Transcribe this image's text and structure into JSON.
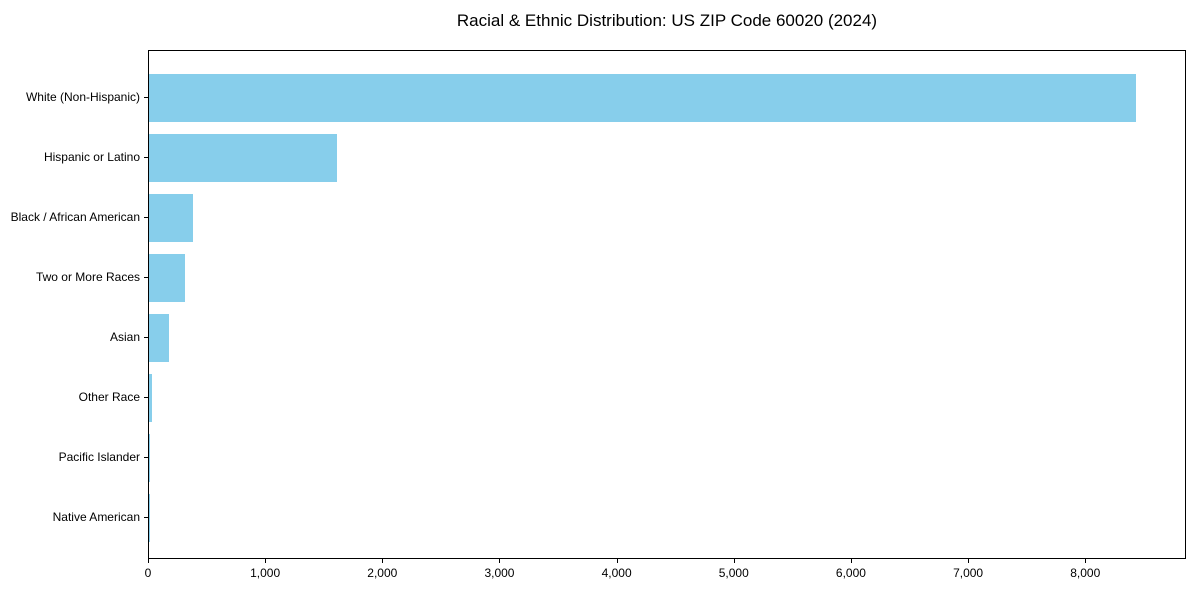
{
  "title": "Racial & Ethnic Distribution: US ZIP Code 60020 (2024)",
  "colors": {
    "bar": "#87CEEB",
    "axis": "#000000",
    "background": "#FFFFFF",
    "text": "#000000"
  },
  "chart_data": {
    "type": "bar",
    "orientation": "horizontal",
    "title": "Racial & Ethnic Distribution: US ZIP Code 60020 (2024)",
    "categories": [
      "White (Non-Hispanic)",
      "Hispanic or Latino",
      "Black / African American",
      "Two or More Races",
      "Asian",
      "Other Race",
      "Pacific Islander",
      "Native American"
    ],
    "values": [
      8427,
      1607,
      376,
      308,
      171,
      26,
      8,
      2
    ],
    "xlabel": "",
    "ylabel": "",
    "xlim": [
      0,
      8860
    ],
    "xticks": [
      0,
      1000,
      2000,
      3000,
      4000,
      5000,
      6000,
      7000,
      8000
    ],
    "xtick_labels": [
      "0",
      "1,000",
      "2,000",
      "3,000",
      "4,000",
      "5,000",
      "6,000",
      "7,000",
      "8,000"
    ],
    "bar_color": "#87CEEB",
    "grid": false,
    "legend": null
  }
}
